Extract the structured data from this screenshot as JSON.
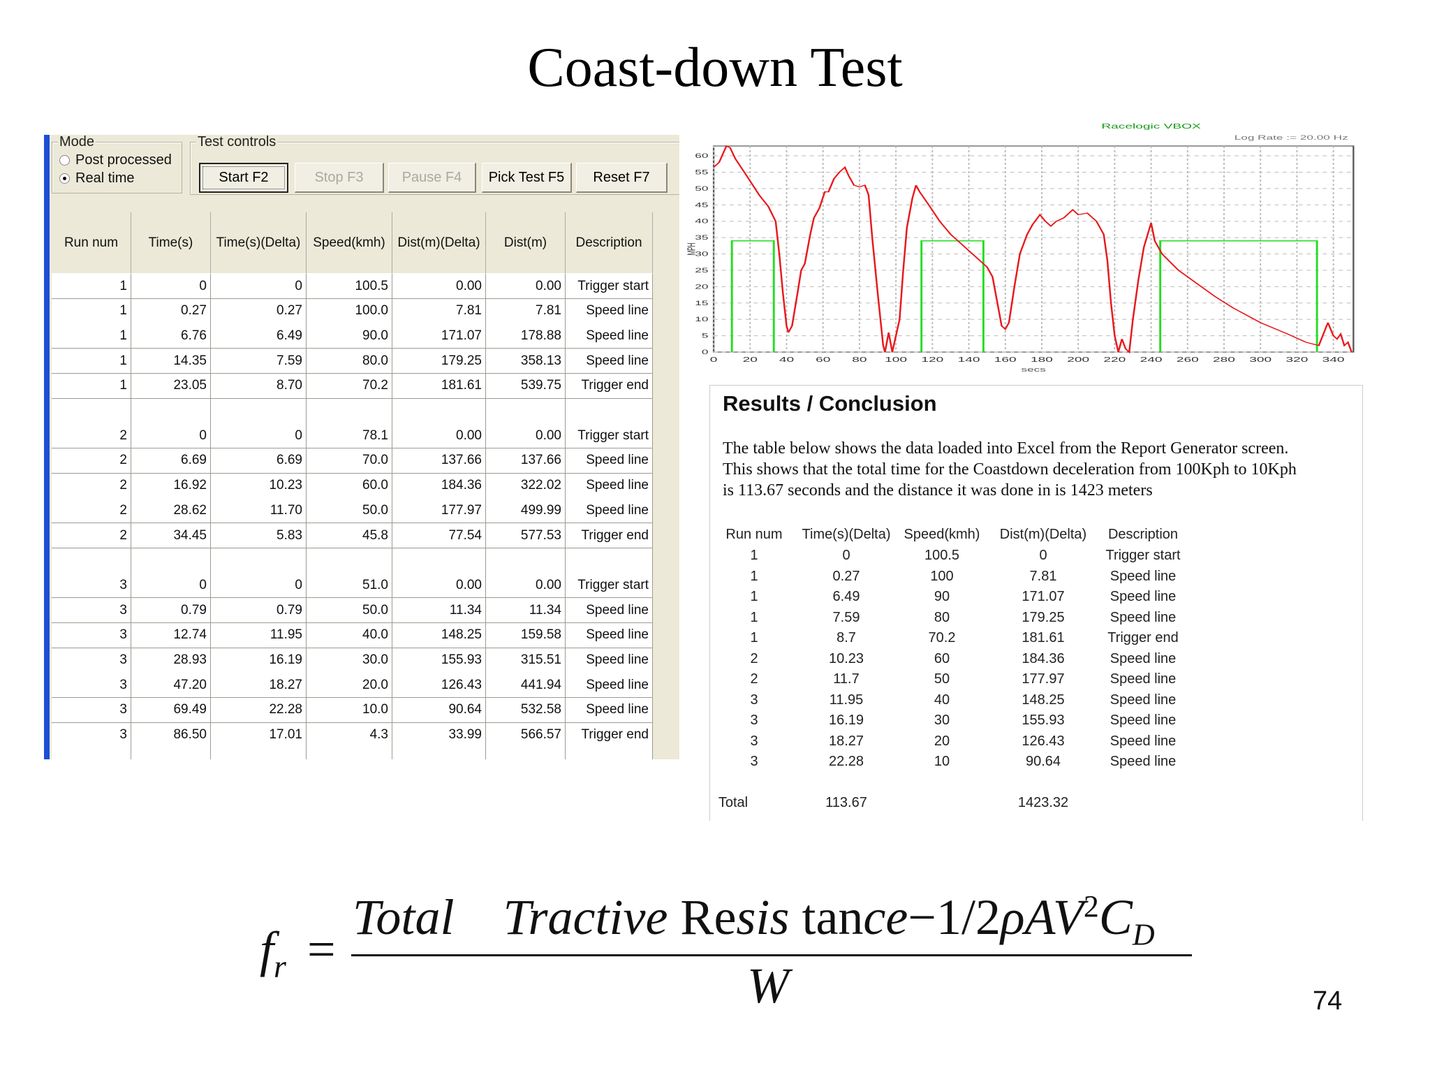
{
  "slide": {
    "title": "Coast-down Test",
    "page_number": "74"
  },
  "app": {
    "mode": {
      "label": "Mode",
      "options": [
        {
          "label": "Post processed",
          "selected": false
        },
        {
          "label": "Real time",
          "selected": true
        }
      ]
    },
    "test_controls": {
      "label": "Test controls",
      "buttons": [
        {
          "label": "Start F2",
          "enabled": true,
          "default": true
        },
        {
          "label": "Stop F3",
          "enabled": false
        },
        {
          "label": "Pause F4",
          "enabled": false
        },
        {
          "label": "Pick Test F5",
          "enabled": true
        },
        {
          "label": "Reset F7",
          "enabled": true
        }
      ]
    },
    "table": {
      "columns": [
        "Run num",
        "Time(s)",
        "Time(s)(Delta)",
        "Speed(kmh)",
        "Dist(m)(Delta)",
        "Dist(m)",
        "Description"
      ],
      "rows": [
        [
          "1",
          "0",
          "0",
          "100.5",
          "0.00",
          "0.00",
          "Trigger start"
        ],
        [
          "1",
          "0.27",
          "0.27",
          "100.0",
          "7.81",
          "7.81",
          "Speed line"
        ],
        [
          "1",
          "6.76",
          "6.49",
          "90.0",
          "171.07",
          "178.88",
          "Speed line"
        ],
        [
          "1",
          "14.35",
          "7.59",
          "80.0",
          "179.25",
          "358.13",
          "Speed line"
        ],
        [
          "1",
          "23.05",
          "8.70",
          "70.2",
          "181.61",
          "539.75",
          "Trigger end"
        ],
        [
          "",
          "",
          "",
          "",
          "",
          "",
          ""
        ],
        [
          "2",
          "0",
          "0",
          "78.1",
          "0.00",
          "0.00",
          "Trigger start"
        ],
        [
          "2",
          "6.69",
          "6.69",
          "70.0",
          "137.66",
          "137.66",
          "Speed line"
        ],
        [
          "2",
          "16.92",
          "10.23",
          "60.0",
          "184.36",
          "322.02",
          "Speed line"
        ],
        [
          "2",
          "28.62",
          "11.70",
          "50.0",
          "177.97",
          "499.99",
          "Speed line"
        ],
        [
          "2",
          "34.45",
          "5.83",
          "45.8",
          "77.54",
          "577.53",
          "Trigger end"
        ],
        [
          "",
          "",
          "",
          "",
          "",
          "",
          ""
        ],
        [
          "3",
          "0",
          "0",
          "51.0",
          "0.00",
          "0.00",
          "Trigger start"
        ],
        [
          "3",
          "0.79",
          "0.79",
          "50.0",
          "11.34",
          "11.34",
          "Speed line"
        ],
        [
          "3",
          "12.74",
          "11.95",
          "40.0",
          "148.25",
          "159.58",
          "Speed line"
        ],
        [
          "3",
          "28.93",
          "16.19",
          "30.0",
          "155.93",
          "315.51",
          "Speed line"
        ],
        [
          "3",
          "47.20",
          "18.27",
          "20.0",
          "126.43",
          "441.94",
          "Speed line"
        ],
        [
          "3",
          "69.49",
          "22.28",
          "10.0",
          "90.64",
          "532.58",
          "Speed line"
        ],
        [
          "3",
          "86.50",
          "17.01",
          "4.3",
          "33.99",
          "566.57",
          "Trigger end"
        ],
        [
          "",
          "",
          "",
          "",
          "",
          "",
          ""
        ]
      ]
    }
  },
  "chart_data": {
    "type": "line",
    "title": "Racelogic VBOX",
    "subtitle": "Log Rate := 20.00 Hz",
    "xlabel": "secs",
    "ylabel": "MPH",
    "xlim": [
      0,
      351
    ],
    "ylim": [
      0,
      63
    ],
    "xticks": [
      0,
      20,
      40,
      60,
      80,
      100,
      120,
      140,
      160,
      180,
      200,
      220,
      240,
      260,
      280,
      300,
      320,
      340
    ],
    "yticks": [
      0,
      5,
      10,
      15,
      20,
      25,
      30,
      35,
      40,
      45,
      50,
      55,
      60
    ],
    "grid": true,
    "colors": {
      "speed": "#e8191c",
      "gates": "#22dd22"
    },
    "series": [
      {
        "x": [
          0,
          3,
          7,
          9,
          12,
          18,
          25,
          30,
          34,
          36,
          38,
          40,
          41,
          43,
          46,
          48,
          50,
          53,
          55,
          58,
          61,
          63,
          66,
          69,
          72,
          74,
          77,
          80,
          83,
          85,
          87,
          90,
          93,
          94,
          96,
          98,
          100,
          102,
          104,
          106,
          109,
          111,
          113,
          118,
          124,
          130,
          136,
          142,
          150,
          153,
          156,
          158,
          160,
          162,
          165,
          168,
          172,
          175,
          179,
          182,
          185,
          188,
          192,
          197,
          200,
          205,
          210,
          214,
          216,
          218,
          220,
          222,
          224,
          226,
          228,
          230,
          233,
          236,
          240,
          242,
          246,
          255,
          265,
          275,
          285,
          300,
          315,
          325,
          332,
          337,
          340,
          342,
          344,
          346,
          348,
          350
        ],
        "y": [
          56.5,
          58,
          63,
          62.5,
          59,
          54,
          48,
          44.5,
          40,
          30,
          18,
          8,
          6,
          8,
          18,
          25,
          27,
          36,
          41,
          44,
          49,
          49,
          53,
          55,
          56.5,
          54,
          51,
          50.5,
          51,
          48,
          35,
          18,
          2,
          0,
          6,
          0,
          5,
          10,
          25,
          38,
          47,
          51,
          49,
          45,
          40,
          36,
          33,
          30,
          26,
          23,
          14,
          8,
          7,
          9,
          20,
          30,
          36,
          39,
          42,
          40,
          38.5,
          40,
          41,
          43.5,
          42,
          42.5,
          40,
          36,
          28,
          15,
          5,
          0,
          4,
          1,
          0,
          10,
          22,
          32,
          39.5,
          34,
          30,
          25,
          21,
          17,
          13.5,
          9,
          5.5,
          3,
          2,
          9,
          5,
          4,
          5.5,
          2,
          3,
          0
        ]
      }
    ],
    "gates": [
      {
        "start": 10,
        "end": 33,
        "level": 34
      },
      {
        "start": 114,
        "end": 148,
        "level": 34
      },
      {
        "start": 245,
        "end": 331,
        "level": 34
      }
    ]
  },
  "results": {
    "heading": "Results / Conclusion",
    "paragraph": [
      "The table below shows the data loaded into Excel from the Report Generator screen.",
      "This shows that the total time for the Coastdown deceleration from 100Kph to 10Kph",
      "is 113.67 seconds and the distance it was done in is 1423 meters"
    ],
    "columns": [
      "Run num",
      "Time(s)(Delta)",
      "Speed(kmh)",
      "Dist(m)(Delta)",
      "Description"
    ],
    "rows": [
      [
        "1",
        "0",
        "100.5",
        "0",
        "Trigger start"
      ],
      [
        "1",
        "0.27",
        "100",
        "7.81",
        "Speed line"
      ],
      [
        "1",
        "6.49",
        "90",
        "171.07",
        "Speed line"
      ],
      [
        "1",
        "7.59",
        "80",
        "179.25",
        "Speed line"
      ],
      [
        "1",
        "8.7",
        "70.2",
        "181.61",
        "Trigger end"
      ],
      [
        "2",
        "10.23",
        "60",
        "184.36",
        "Speed line"
      ],
      [
        "2",
        "11.7",
        "50",
        "177.97",
        "Speed line"
      ],
      [
        "3",
        "11.95",
        "40",
        "148.25",
        "Speed line"
      ],
      [
        "3",
        "16.19",
        "30",
        "155.93",
        "Speed line"
      ],
      [
        "3",
        "18.27",
        "20",
        "126.43",
        "Speed line"
      ],
      [
        "3",
        "22.28",
        "10",
        "90.64",
        "Speed line"
      ]
    ],
    "total": {
      "label": "Total",
      "time": "113.67",
      "dist": "1423.32"
    }
  },
  "formula": {
    "lhs": "f",
    "lhs_sub": "r",
    "numerator": "Total   Tractive Resistance − 1/2 ρAV² C_D",
    "numerator_parts": [
      "Total",
      "Tractive",
      "Re",
      "sis",
      "tan",
      "ce",
      "−1/2",
      "ρAV",
      "2",
      "C",
      "D"
    ],
    "denominator": "W",
    "equals": "="
  }
}
